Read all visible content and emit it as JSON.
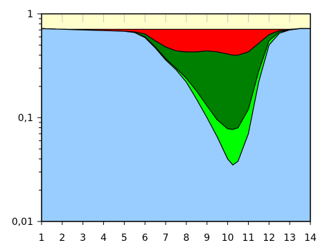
{
  "chart_data": {
    "type": "area",
    "title": "",
    "xlabel": "",
    "ylabel": "",
    "xlim": [
      1,
      14
    ],
    "ylim": [
      0.01,
      1
    ],
    "yscale": "log",
    "grid": false,
    "legend": "none",
    "x_ticks": [
      "1",
      "2",
      "3",
      "4",
      "5",
      "6",
      "7",
      "8",
      "9",
      "10",
      "11",
      "12",
      "13",
      "14"
    ],
    "y_ticks": [
      {
        "value": 1,
        "label": "1"
      },
      {
        "value": 0.1,
        "label": "0,1"
      },
      {
        "value": 0.01,
        "label": "0,01"
      }
    ],
    "x": [
      1,
      2,
      3,
      4,
      5,
      5.5,
      6,
      6.5,
      7,
      7.5,
      8,
      8.5,
      9,
      9.5,
      10,
      10.25,
      10.5,
      11,
      11.5,
      12,
      12.5,
      13,
      13.5,
      14
    ],
    "series": [
      {
        "color": "#ff0000",
        "values": [
          0.72,
          0.71,
          0.71,
          0.71,
          0.71,
          0.71,
          0.71,
          0.71,
          0.71,
          0.71,
          0.71,
          0.71,
          0.71,
          0.71,
          0.71,
          0.71,
          0.71,
          0.71,
          0.71,
          0.71,
          0.71,
          0.71,
          0.72,
          0.72
        ]
      },
      {
        "color": "#008000",
        "values": [
          0.72,
          0.71,
          0.7,
          0.69,
          0.68,
          0.67,
          0.64,
          0.55,
          0.48,
          0.44,
          0.43,
          0.43,
          0.44,
          0.43,
          0.41,
          0.4,
          0.4,
          0.43,
          0.52,
          0.63,
          0.69,
          0.7,
          0.72,
          0.72
        ]
      },
      {
        "color": "#00ff00",
        "values": [
          0.72,
          0.71,
          0.7,
          0.69,
          0.68,
          0.66,
          0.6,
          0.48,
          0.37,
          0.3,
          0.24,
          0.18,
          0.13,
          0.095,
          0.078,
          0.077,
          0.08,
          0.12,
          0.28,
          0.55,
          0.67,
          0.7,
          0.72,
          0.72
        ]
      },
      {
        "color": "#99ccff",
        "values": [
          0.72,
          0.71,
          0.7,
          0.69,
          0.68,
          0.66,
          0.59,
          0.47,
          0.36,
          0.29,
          0.22,
          0.15,
          0.1,
          0.065,
          0.04,
          0.035,
          0.038,
          0.07,
          0.22,
          0.5,
          0.65,
          0.7,
          0.72,
          0.72
        ]
      }
    ],
    "background_band": {
      "color": "#ffffcc",
      "from": 0.71,
      "to": 1
    }
  }
}
